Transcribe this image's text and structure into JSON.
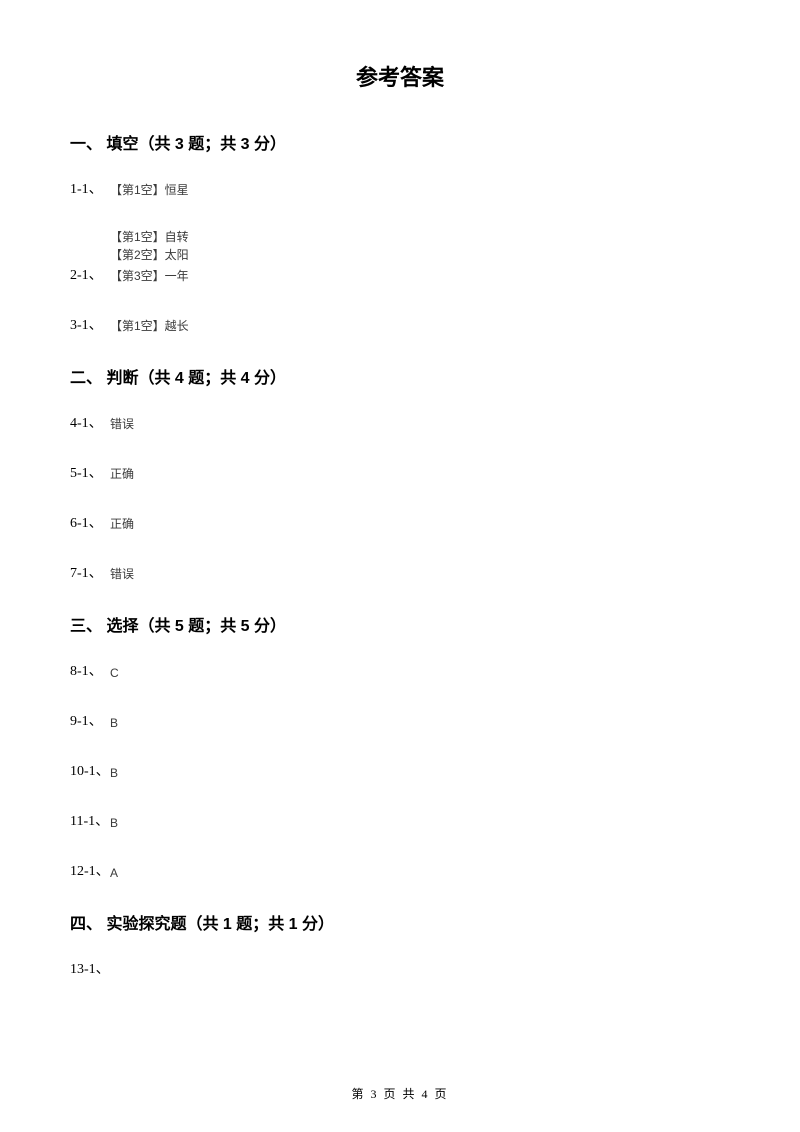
{
  "title": "参考答案",
  "sections": {
    "s1": {
      "header": "一、 填空（共 3 题；共 3 分）"
    },
    "s2": {
      "header": "二、 判断（共 4 题；共 4 分）"
    },
    "s3": {
      "header": "三、 选择（共 5 题；共 5 分）"
    },
    "s4": {
      "header": "四、 实验探究题（共 1 题；共 1 分）"
    }
  },
  "answers": {
    "a1_1": {
      "num": "1-1、",
      "val": "【第1空】恒星"
    },
    "a2_1": {
      "num": "2-1、",
      "lines": [
        "【第1空】自转",
        "【第2空】太阳",
        "【第3空】一年"
      ]
    },
    "a3_1": {
      "num": "3-1、",
      "val": "【第1空】越长"
    },
    "a4_1": {
      "num": "4-1、",
      "val": "错误"
    },
    "a5_1": {
      "num": "5-1、",
      "val": "正确"
    },
    "a6_1": {
      "num": "6-1、",
      "val": "正确"
    },
    "a7_1": {
      "num": "7-1、",
      "val": "错误"
    },
    "a8_1": {
      "num": "8-1、",
      "val": "C"
    },
    "a9_1": {
      "num": "9-1、",
      "val": "B"
    },
    "a10_1": {
      "num": "10-1、",
      "val": "B"
    },
    "a11_1": {
      "num": "11-1、",
      "val": "B"
    },
    "a12_1": {
      "num": "12-1、",
      "val": "A"
    },
    "a13_1": {
      "num": "13-1、",
      "val": ""
    }
  },
  "footer": "第 3 页 共 4 页"
}
